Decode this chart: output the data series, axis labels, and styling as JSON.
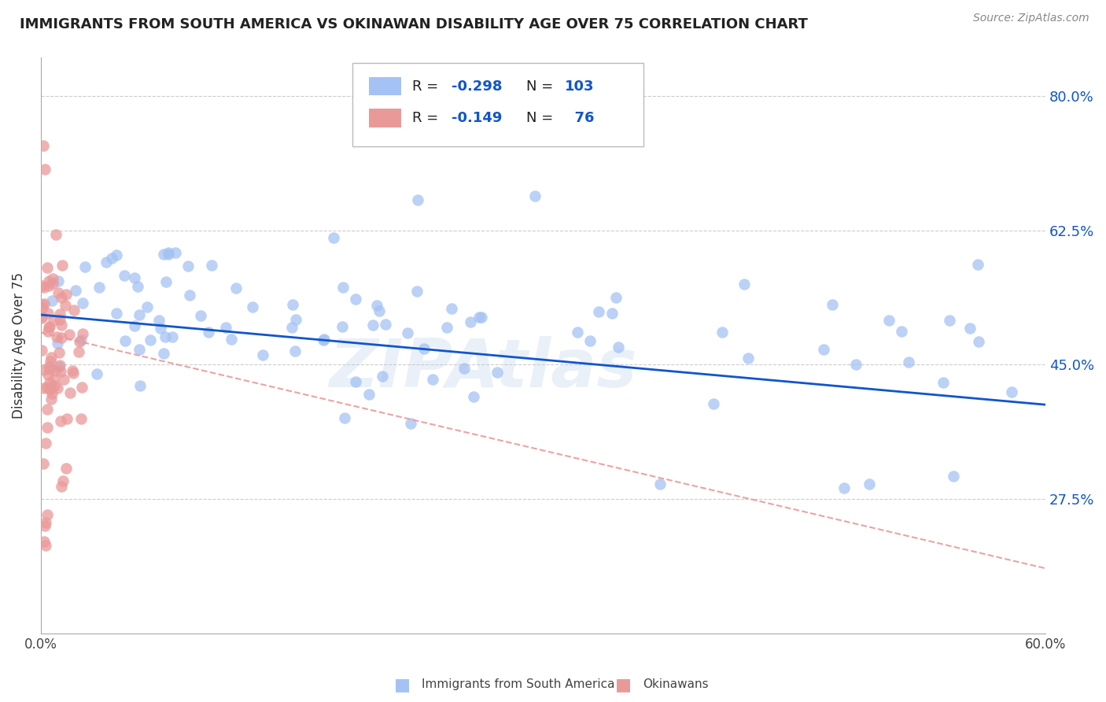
{
  "title": "IMMIGRANTS FROM SOUTH AMERICA VS OKINAWAN DISABILITY AGE OVER 75 CORRELATION CHART",
  "source": "Source: ZipAtlas.com",
  "ylabel": "Disability Age Over 75",
  "xlim": [
    0.0,
    0.6
  ],
  "ylim": [
    0.1,
    0.85
  ],
  "yticks": [
    0.275,
    0.45,
    0.625,
    0.8
  ],
  "ytick_labels": [
    "27.5%",
    "45.0%",
    "62.5%",
    "80.0%"
  ],
  "xticks": [
    0.0,
    0.1,
    0.2,
    0.3,
    0.4,
    0.5,
    0.6
  ],
  "blue_color": "#a4c2f4",
  "pink_color": "#ea9999",
  "blue_line_color": "#1155cc",
  "pink_line_color": "#e06666",
  "label_color": "#1155cc",
  "R_blue": -0.298,
  "N_blue": 103,
  "R_pink": -0.149,
  "N_pink": 76,
  "watermark": "ZIPAtlas",
  "blue_trend_x0": 0.0,
  "blue_trend_y0": 0.515,
  "blue_trend_x1": 0.6,
  "blue_trend_y1": 0.398,
  "pink_trend_x0": 0.0,
  "pink_trend_y0": 0.492,
  "pink_trend_x1": 0.6,
  "pink_trend_y1": 0.185
}
